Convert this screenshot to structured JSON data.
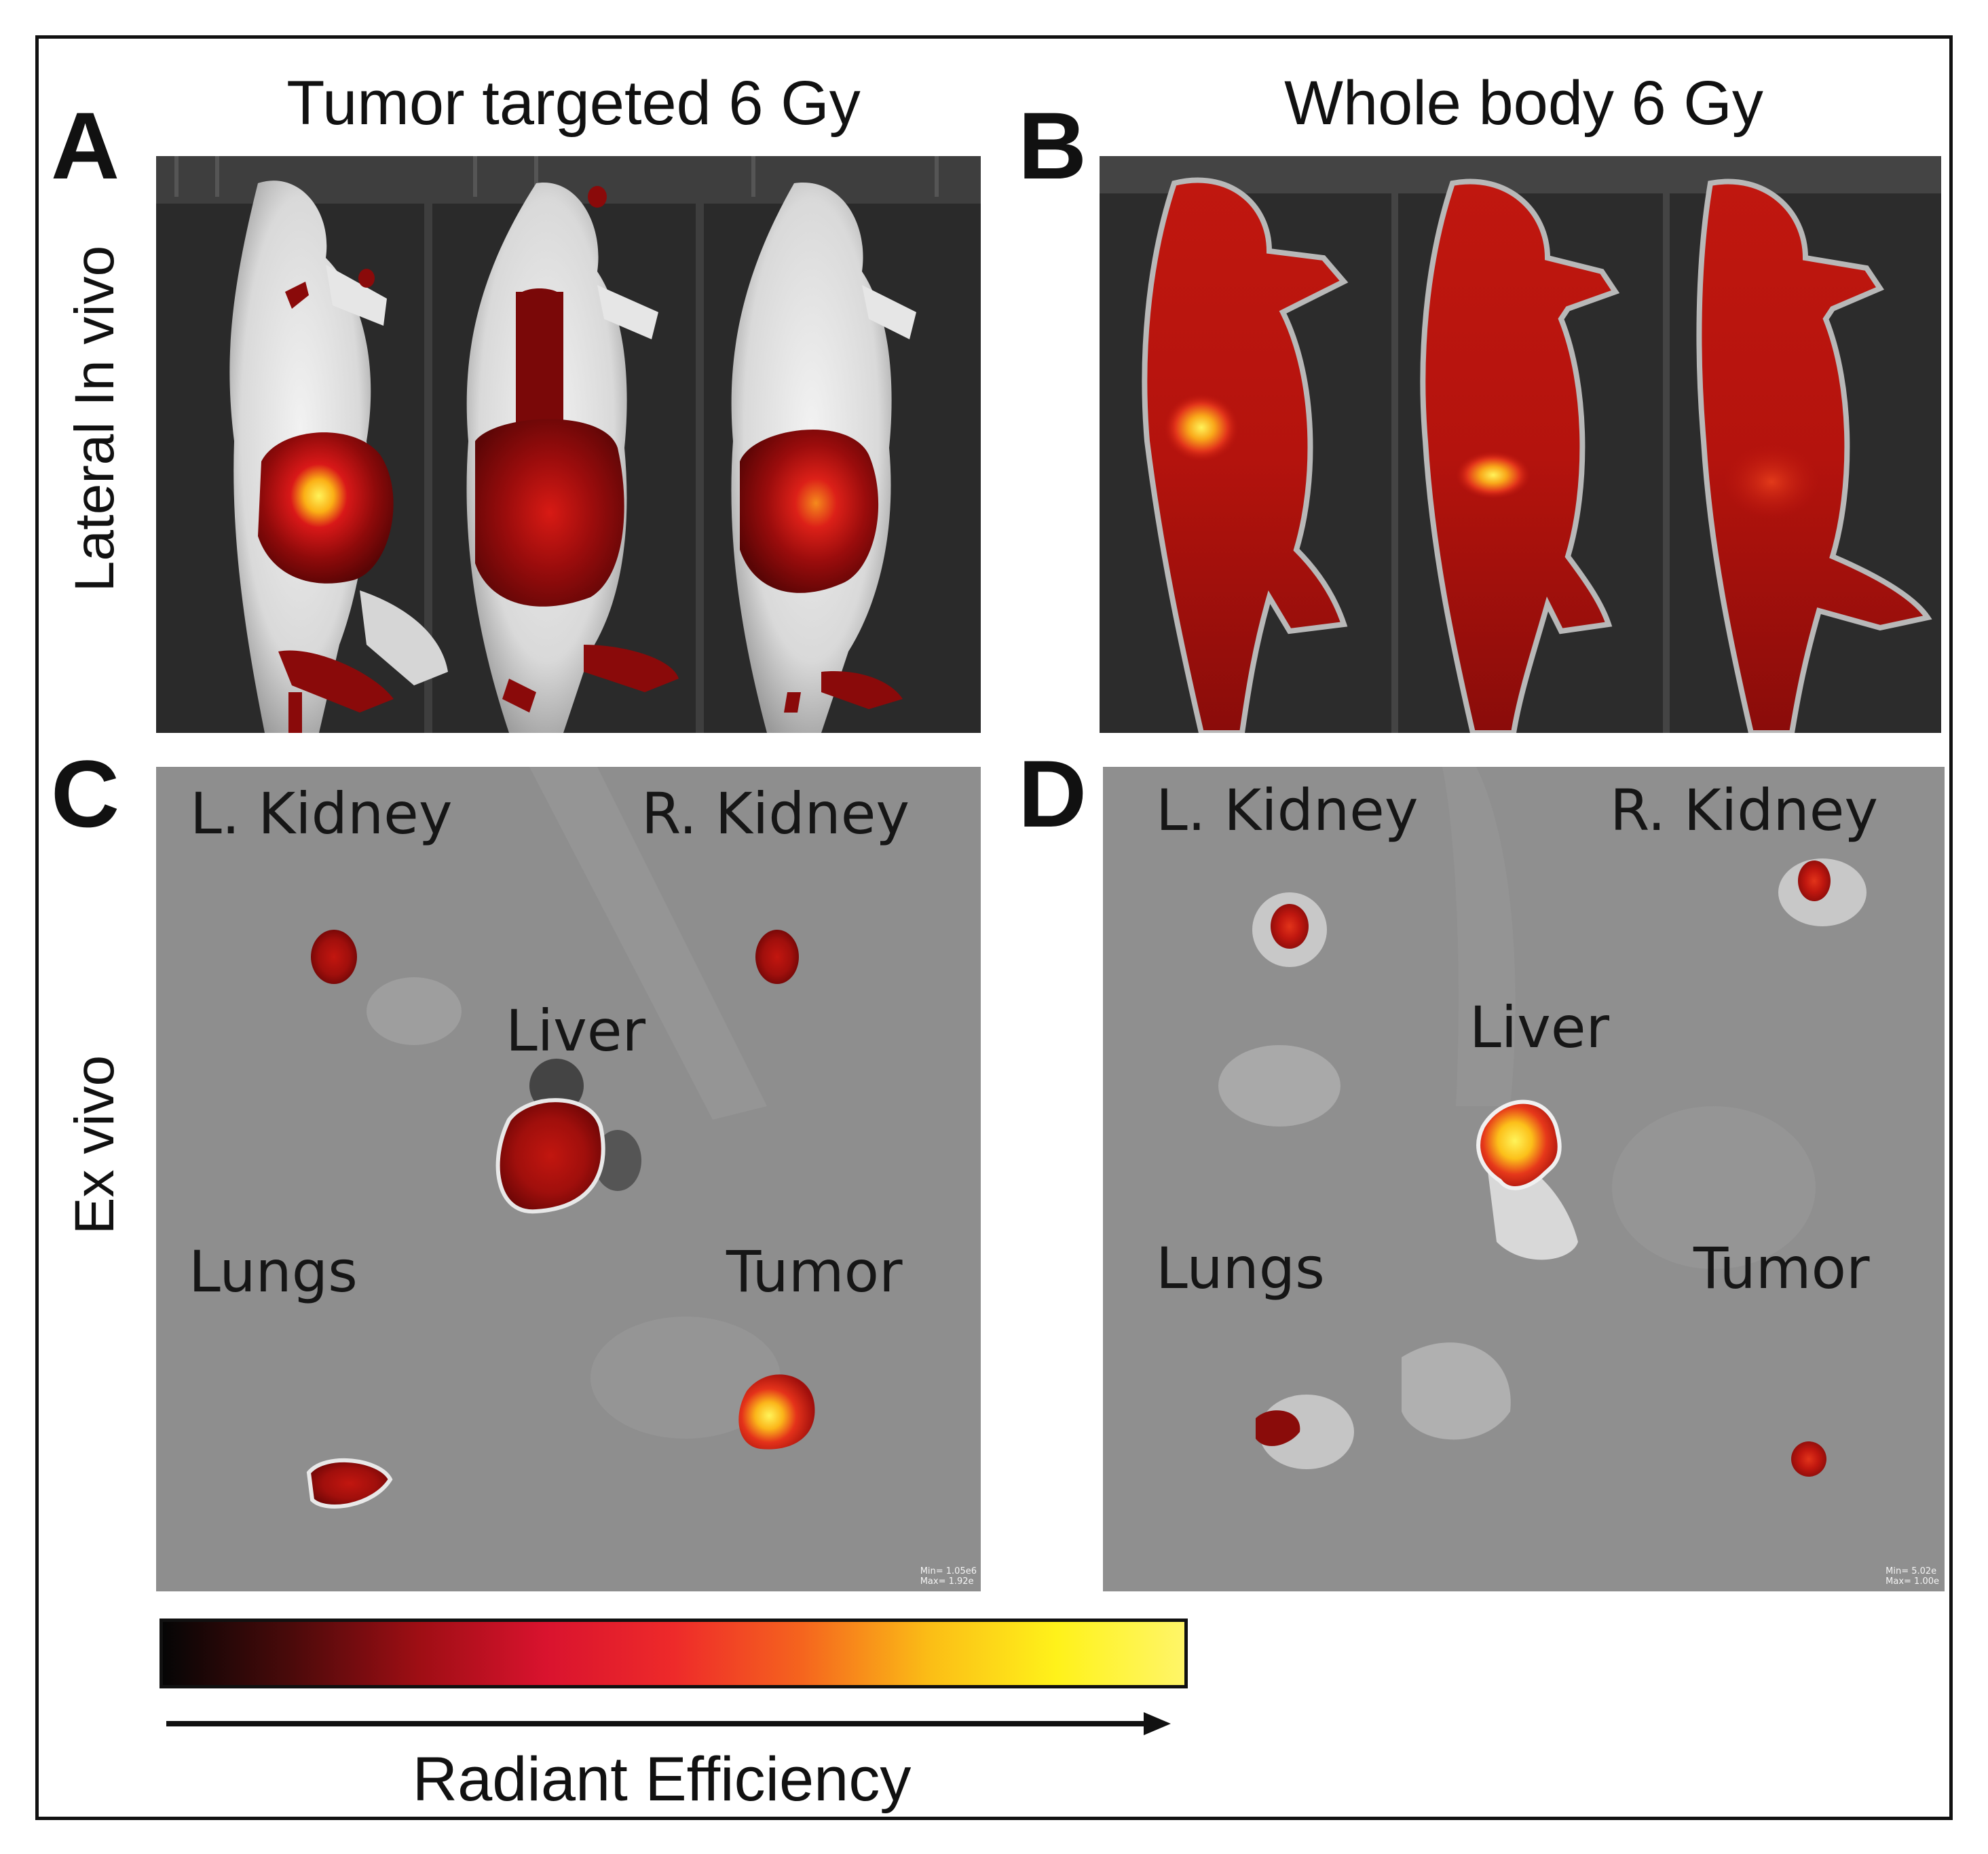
{
  "panels": {
    "a": {
      "letter": "A",
      "title": "Tumor targeted 6 Gy",
      "row_label": "Lateral In vivo"
    },
    "b": {
      "letter": "B",
      "title": "Whole body 6 Gy"
    },
    "c": {
      "letter": "C",
      "row_label": "Ex vivo",
      "organs": {
        "l_kidney": "L. Kidney",
        "r_kidney": "R. Kidney",
        "liver": "Liver",
        "lungs": "Lungs",
        "tumor": "Tumor"
      },
      "minmax": [
        "Min= 1.05e6",
        "Max= 1.92e"
      ]
    },
    "d": {
      "letter": "D",
      "organs": {
        "l_kidney": "L. Kidney",
        "r_kidney": "R. Kidney",
        "liver": "Liver",
        "lungs": "Lungs",
        "tumor": "Tumor"
      },
      "minmax": [
        "Min= 5.02e",
        "Max= 1.00e"
      ]
    }
  },
  "colorbar": {
    "label": "Radiant Efficiency",
    "colors": [
      "#050505",
      "#4a0a0a",
      "#9e0e14",
      "#d9132e",
      "#ee2a2a",
      "#f5641e",
      "#fbbd16",
      "#fff21a",
      "#fff568"
    ]
  }
}
